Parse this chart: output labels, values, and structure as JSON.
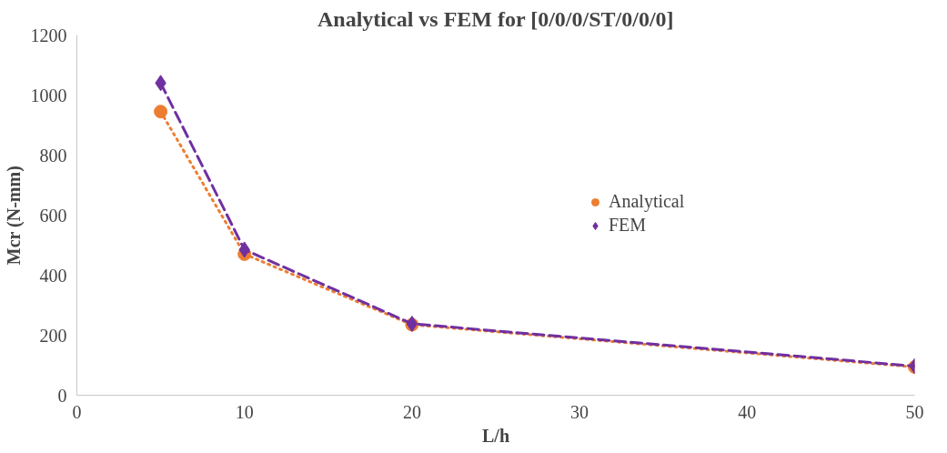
{
  "chart_data": {
    "type": "line",
    "title": "Analytical vs FEM for [0/0/0/ST/0/0/0]",
    "xlabel": "L/h",
    "ylabel": "Mcr (N-mm)",
    "x": [
      5,
      10,
      20,
      50
    ],
    "series": [
      {
        "name": "Analytical",
        "color": "#ed7d31",
        "values": [
          945,
          470,
          235,
          94
        ],
        "marker": "circle",
        "line_style": "dotted"
      },
      {
        "name": "FEM",
        "color": "#7030a0",
        "values": [
          1040,
          485,
          238,
          97
        ],
        "marker": "diamond",
        "line_style": "dashed"
      }
    ],
    "xlim": [
      0,
      50
    ],
    "xticks": [
      0,
      10,
      20,
      30,
      40,
      50
    ],
    "ylim": [
      0,
      1200
    ],
    "yticks": [
      0,
      200,
      400,
      600,
      800,
      1000,
      1200
    ],
    "grid": false,
    "legend": "right"
  }
}
